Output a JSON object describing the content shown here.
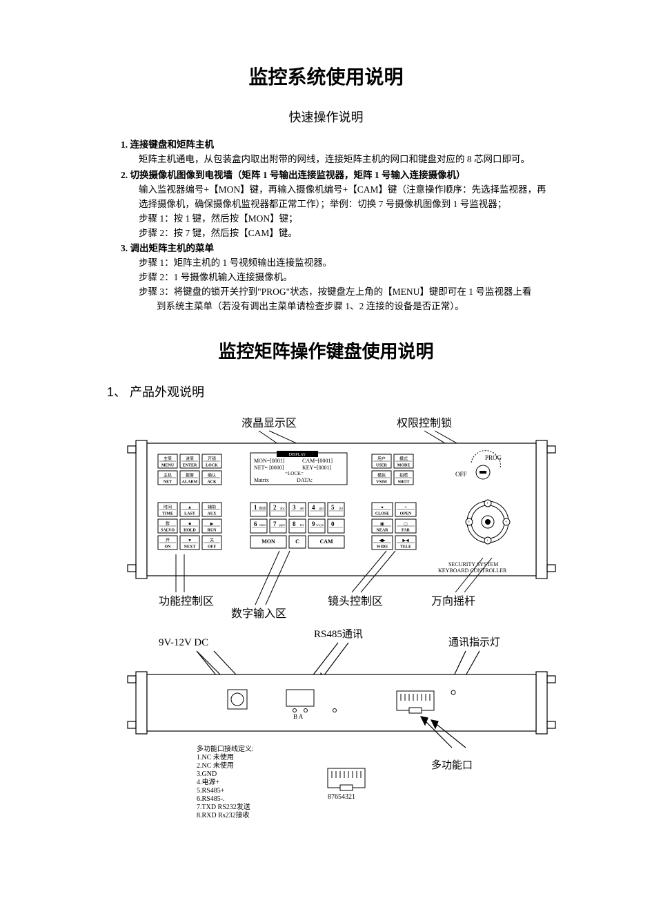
{
  "title_main": "监控系统使用说明",
  "title_sub": "快速操作说明",
  "item1_head": "1. 连接键盘和矩阵主机",
  "item1_l1": "矩阵主机通电，从包装盒内取出附带的网线，连接矩阵主机的网口和键盘对应的 8 芯网口即可。",
  "item2_head": "2. 切换摄像机图像到电视墙（矩阵 1 号输出连接监视器，矩阵 1 号输入连接摄像机）",
  "item2_l1": "输入监视器编号+【MON】键，再输入摄像机编号+【CAM】键（注意操作顺序：先选择监视器，再",
  "item2_l2": "选择摄像机，确保摄像机监视器都正常工作）；举例：切换 7 号摄像机图像到 1 号监视器；",
  "item2_l3": "步骤 1：按 1 键，然后按【MON】键；",
  "item2_l4": "步骤 2：按 7 键，然后按【CAM】键。",
  "item3_head": "3. 调出矩阵主机的菜单",
  "item3_l1": "步骤 1：矩阵主机的 1 号视频输出连接监视器。",
  "item3_l2": "步骤 2：1 号摄像机输入连接摄像机。",
  "item3_l3": "步骤 3：将键盘的锁开关拧到\"PROG\"状态，按键盘左上角的【MENU】键即可在 1 号监视器上看",
  "item3_l4": "到系统主菜单（若没有调出主菜单请检查步骤 1、2 连接的设备是否正常）。",
  "title_second": "监控矩阵操作键盘使用说明",
  "section1": "1、 产品外观说明",
  "labels": {
    "lcd": "液晶显示区",
    "lock": "权限控制锁",
    "func": "功能控制区",
    "numpad": "数字输入区",
    "lens": "镜头控制区",
    "joystick": "万向摇杆",
    "dc": "9V-12V DC",
    "rs485": "RS485通讯",
    "led": "通讯指示灯",
    "multi": "多功能口",
    "security": "SECURITY SYSTEM",
    "controller": "KEYBOARD CONTROLLER"
  },
  "lcd": {
    "mon": "MON=[0001]",
    "cam": "CAM=[0001]",
    "net": "NET= [0000]",
    "key": "KEY=[0001]",
    "lockline": "=LOCK=",
    "matrix": "Matrix",
    "data": "DATA:",
    "header": "DISPLAY"
  },
  "prog": {
    "prog": "PROG",
    "off": "OFF"
  },
  "top_buttons": {
    "r1": [
      {
        "cn": "主菜",
        "en": "MENU"
      },
      {
        "cn": "进菜",
        "en": "ENTER"
      },
      {
        "cn": "开锁",
        "en": "LOCK"
      }
    ],
    "r2": [
      {
        "cn": "主机",
        "en": "NET"
      },
      {
        "cn": "报警",
        "en": "ALARM"
      },
      {
        "cn": "确认",
        "en": "ACK"
      }
    ],
    "right_r1": [
      {
        "cn": "用户",
        "en": "USER"
      },
      {
        "cn": "模式",
        "en": "MODE"
      }
    ],
    "right_r2": [
      {
        "cn": "模拟",
        "en": "VSIM"
      },
      {
        "cn": "拍照",
        "en": "SHOT"
      }
    ]
  },
  "func_buttons": {
    "r1": [
      {
        "cn": "时间",
        "en": "TIME"
      },
      {
        "cn": "▲",
        "en": "LAST"
      },
      {
        "cn": "辅助",
        "en": "AUX"
      }
    ],
    "r2": [
      {
        "cn": "群",
        "en": "SALVO"
      },
      {
        "cn": "■",
        "en": "HOLD"
      },
      {
        "cn": "▶",
        "en": "RUN"
      }
    ],
    "r3": [
      {
        "cn": "开",
        "en": "ON"
      },
      {
        "cn": "▼",
        "en": "NEXT"
      },
      {
        "cn": "关",
        "en": "OFF"
      }
    ]
  },
  "numpad": {
    "r1": [
      {
        "n": "1",
        "sub": "自动"
      },
      {
        "n": "2",
        "sub": "abc"
      },
      {
        "n": "3",
        "sub": "def"
      },
      {
        "n": "4",
        "sub": "ghi"
      },
      {
        "n": "5",
        "sub": "jkl"
      }
    ],
    "r2": [
      {
        "n": "6",
        "sub": "mno"
      },
      {
        "n": "7",
        "sub": "pqrs"
      },
      {
        "n": "8",
        "sub": "tuv"
      },
      {
        "n": "9",
        "sub": "wxyz"
      },
      {
        "n": "0",
        "sub": ""
      }
    ],
    "r3": [
      {
        "en": "MON",
        "full": true
      },
      {
        "en": "C",
        "full": false
      },
      {
        "en": "CAM",
        "full": true
      }
    ]
  },
  "lens_buttons": {
    "r1": [
      {
        "sym": "●",
        "en": "CLOSE"
      },
      {
        "sym": "○",
        "en": "OPEN"
      }
    ],
    "r2": [
      {
        "sym": "▣",
        "en": "NEAR"
      },
      {
        "sym": "▢",
        "en": "FAR"
      }
    ],
    "r3": [
      {
        "sym": "◀▶",
        "en": "WIDE"
      },
      {
        "sym": "▶◀",
        "en": "TELE"
      }
    ]
  },
  "pinout": {
    "title": "多功能口接线定义:",
    "lines": [
      "1.NC        未使用",
      "2.NC        未使用",
      "3.GND",
      "4.电源+",
      "5.RS485+",
      "6.RS485-.",
      "7.TXD       RS232发送",
      "8.RXD       Rs232接收"
    ],
    "pins": "87654321"
  },
  "rear": {
    "ba": "B  A"
  },
  "colors": {
    "line": "#000000",
    "bg": "#ffffff",
    "btn_fill": "#ffffff",
    "grey": "#c0c0c0"
  }
}
